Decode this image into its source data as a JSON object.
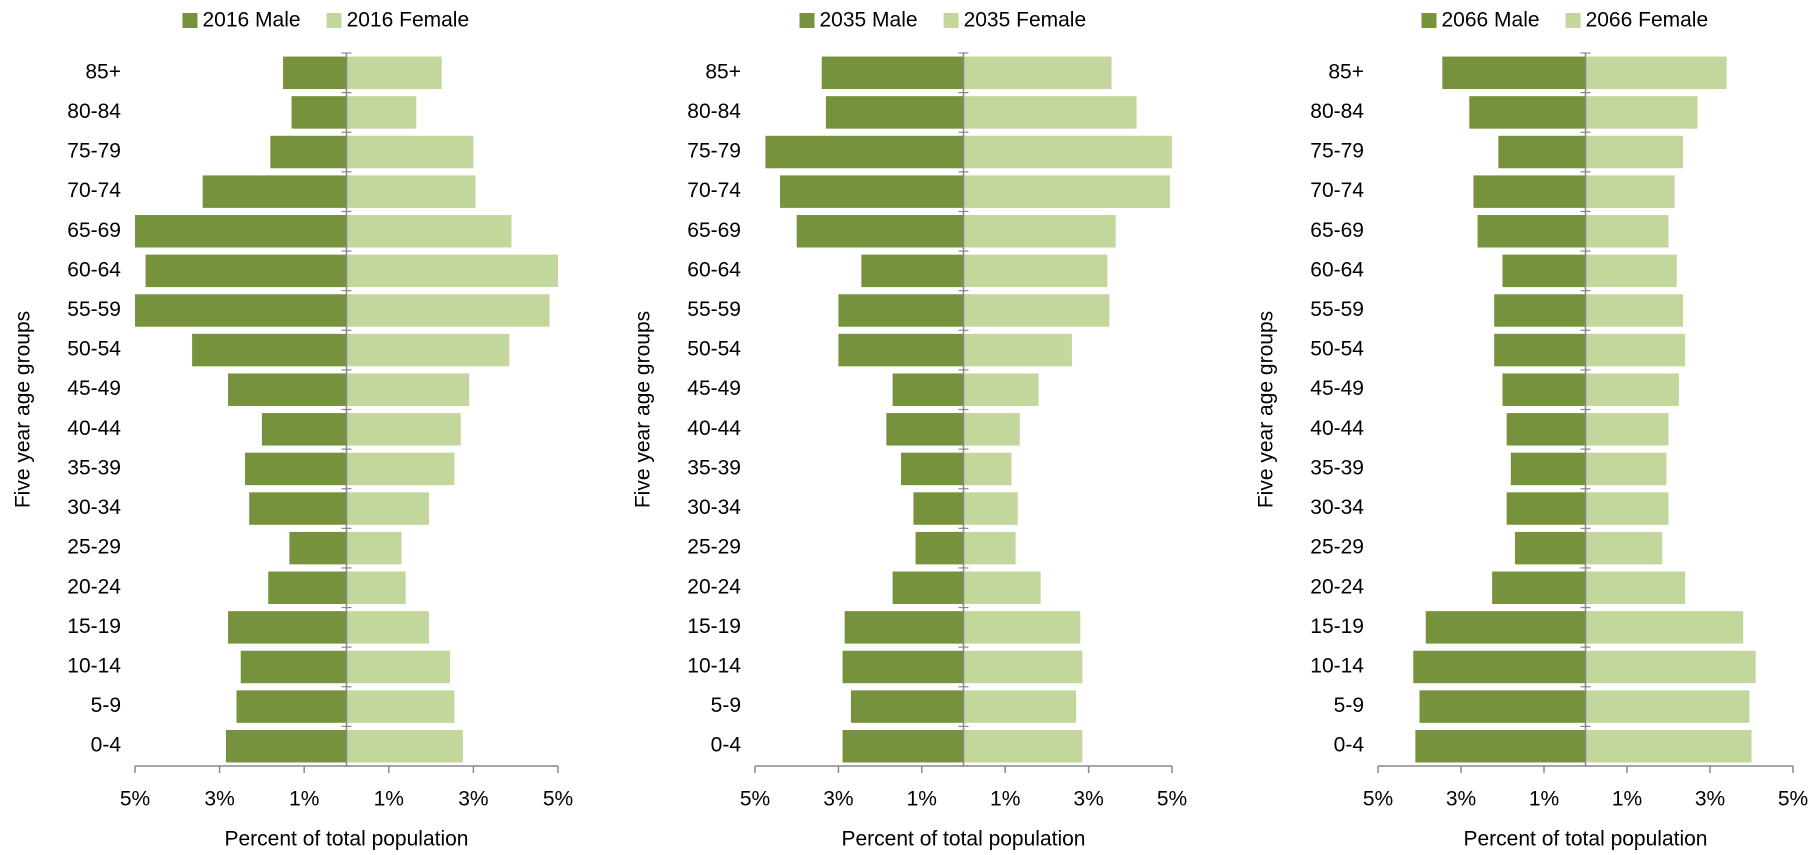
{
  "chart_data": [
    {
      "type": "bar",
      "orientation": "horizontal",
      "stacked": "diverging",
      "categories": [
        "85+",
        "80-84",
        "75-79",
        "70-74",
        "65-69",
        "60-64",
        "55-59",
        "50-54",
        "45-49",
        "40-44",
        "35-39",
        "30-34",
        "25-29",
        "20-24",
        "15-19",
        "10-14",
        "5-9",
        "0-4"
      ],
      "series": [
        {
          "name": "2016 Male",
          "color": "#76923c",
          "values": [
            -1.5,
            -1.3,
            -1.8,
            -3.4,
            -5.0,
            -4.75,
            -5.0,
            -3.65,
            -2.8,
            -2.0,
            -2.4,
            -2.3,
            -1.35,
            -1.85,
            -2.8,
            -2.5,
            -2.6,
            -2.85
          ]
        },
        {
          "name": "2016 Female",
          "color": "#c3d69b",
          "values": [
            2.25,
            1.65,
            3.0,
            3.05,
            3.9,
            5.0,
            4.8,
            3.85,
            2.9,
            2.7,
            2.55,
            1.95,
            1.3,
            1.4,
            1.95,
            2.45,
            2.55,
            2.75
          ]
        }
      ],
      "xlabel": "Percent of total population",
      "ylabel": "Five year age groups",
      "xlim": [
        -5,
        5
      ],
      "xticks": [
        {
          "value": -5,
          "label": "5%"
        },
        {
          "value": -3,
          "label": "3%"
        },
        {
          "value": -1,
          "label": "1%"
        },
        {
          "value": 1,
          "label": "1%"
        },
        {
          "value": 3,
          "label": "3%"
        },
        {
          "value": 5,
          "label": "5%"
        }
      ],
      "legend": "top"
    },
    {
      "type": "bar",
      "orientation": "horizontal",
      "stacked": "diverging",
      "categories": [
        "85+",
        "80-84",
        "75-79",
        "70-74",
        "65-69",
        "60-64",
        "55-59",
        "50-54",
        "45-49",
        "40-44",
        "35-39",
        "30-34",
        "25-29",
        "20-24",
        "15-19",
        "10-14",
        "5-9",
        "0-4"
      ],
      "series": [
        {
          "name": "2035 Male",
          "color": "#76923c",
          "values": [
            -3.4,
            -3.3,
            -4.75,
            -4.4,
            -4.0,
            -2.45,
            -3.0,
            -3.0,
            -1.7,
            -1.85,
            -1.5,
            -1.2,
            -1.15,
            -1.7,
            -2.85,
            -2.9,
            -2.7,
            -2.9
          ]
        },
        {
          "name": "2035 Female",
          "color": "#c3d69b",
          "values": [
            3.55,
            4.15,
            5.0,
            4.95,
            3.65,
            3.45,
            3.5,
            2.6,
            1.8,
            1.35,
            1.15,
            1.3,
            1.25,
            1.85,
            2.8,
            2.85,
            2.7,
            2.85
          ]
        }
      ],
      "xlabel": "Percent of total population",
      "ylabel": "Five year age groups",
      "xlim": [
        -5,
        5
      ],
      "xticks": [
        {
          "value": -5,
          "label": "5%"
        },
        {
          "value": -3,
          "label": "3%"
        },
        {
          "value": -1,
          "label": "1%"
        },
        {
          "value": 1,
          "label": "1%"
        },
        {
          "value": 3,
          "label": "3%"
        },
        {
          "value": 5,
          "label": "5%"
        }
      ],
      "legend": "top"
    },
    {
      "type": "bar",
      "orientation": "horizontal",
      "stacked": "diverging",
      "categories": [
        "85+",
        "80-84",
        "75-79",
        "70-74",
        "65-69",
        "60-64",
        "55-59",
        "50-54",
        "45-49",
        "40-44",
        "35-39",
        "30-34",
        "25-29",
        "20-24",
        "15-19",
        "10-14",
        "5-9",
        "0-4"
      ],
      "series": [
        {
          "name": "2066 Male",
          "color": "#76923c",
          "values": [
            -3.45,
            -2.8,
            -2.1,
            -2.7,
            -2.6,
            -2.0,
            -2.2,
            -2.2,
            -2.0,
            -1.9,
            -1.8,
            -1.9,
            -1.7,
            -2.25,
            -3.85,
            -4.15,
            -4.0,
            -4.1
          ]
        },
        {
          "name": "2066 Female",
          "color": "#c3d69b",
          "values": [
            3.4,
            2.7,
            2.35,
            2.15,
            2.0,
            2.2,
            2.35,
            2.4,
            2.25,
            2.0,
            1.95,
            2.0,
            1.85,
            2.4,
            3.8,
            4.1,
            3.95,
            4.0
          ]
        }
      ],
      "xlabel": "Percent of total population",
      "ylabel": "Five year age groups",
      "xlim": [
        -5,
        5
      ],
      "xticks": [
        {
          "value": -5,
          "label": "5%"
        },
        {
          "value": -3,
          "label": "3%"
        },
        {
          "value": -1,
          "label": "1%"
        },
        {
          "value": 1,
          "label": "1%"
        },
        {
          "value": 3,
          "label": "3%"
        },
        {
          "value": 5,
          "label": "5%"
        }
      ],
      "legend": "top"
    }
  ]
}
